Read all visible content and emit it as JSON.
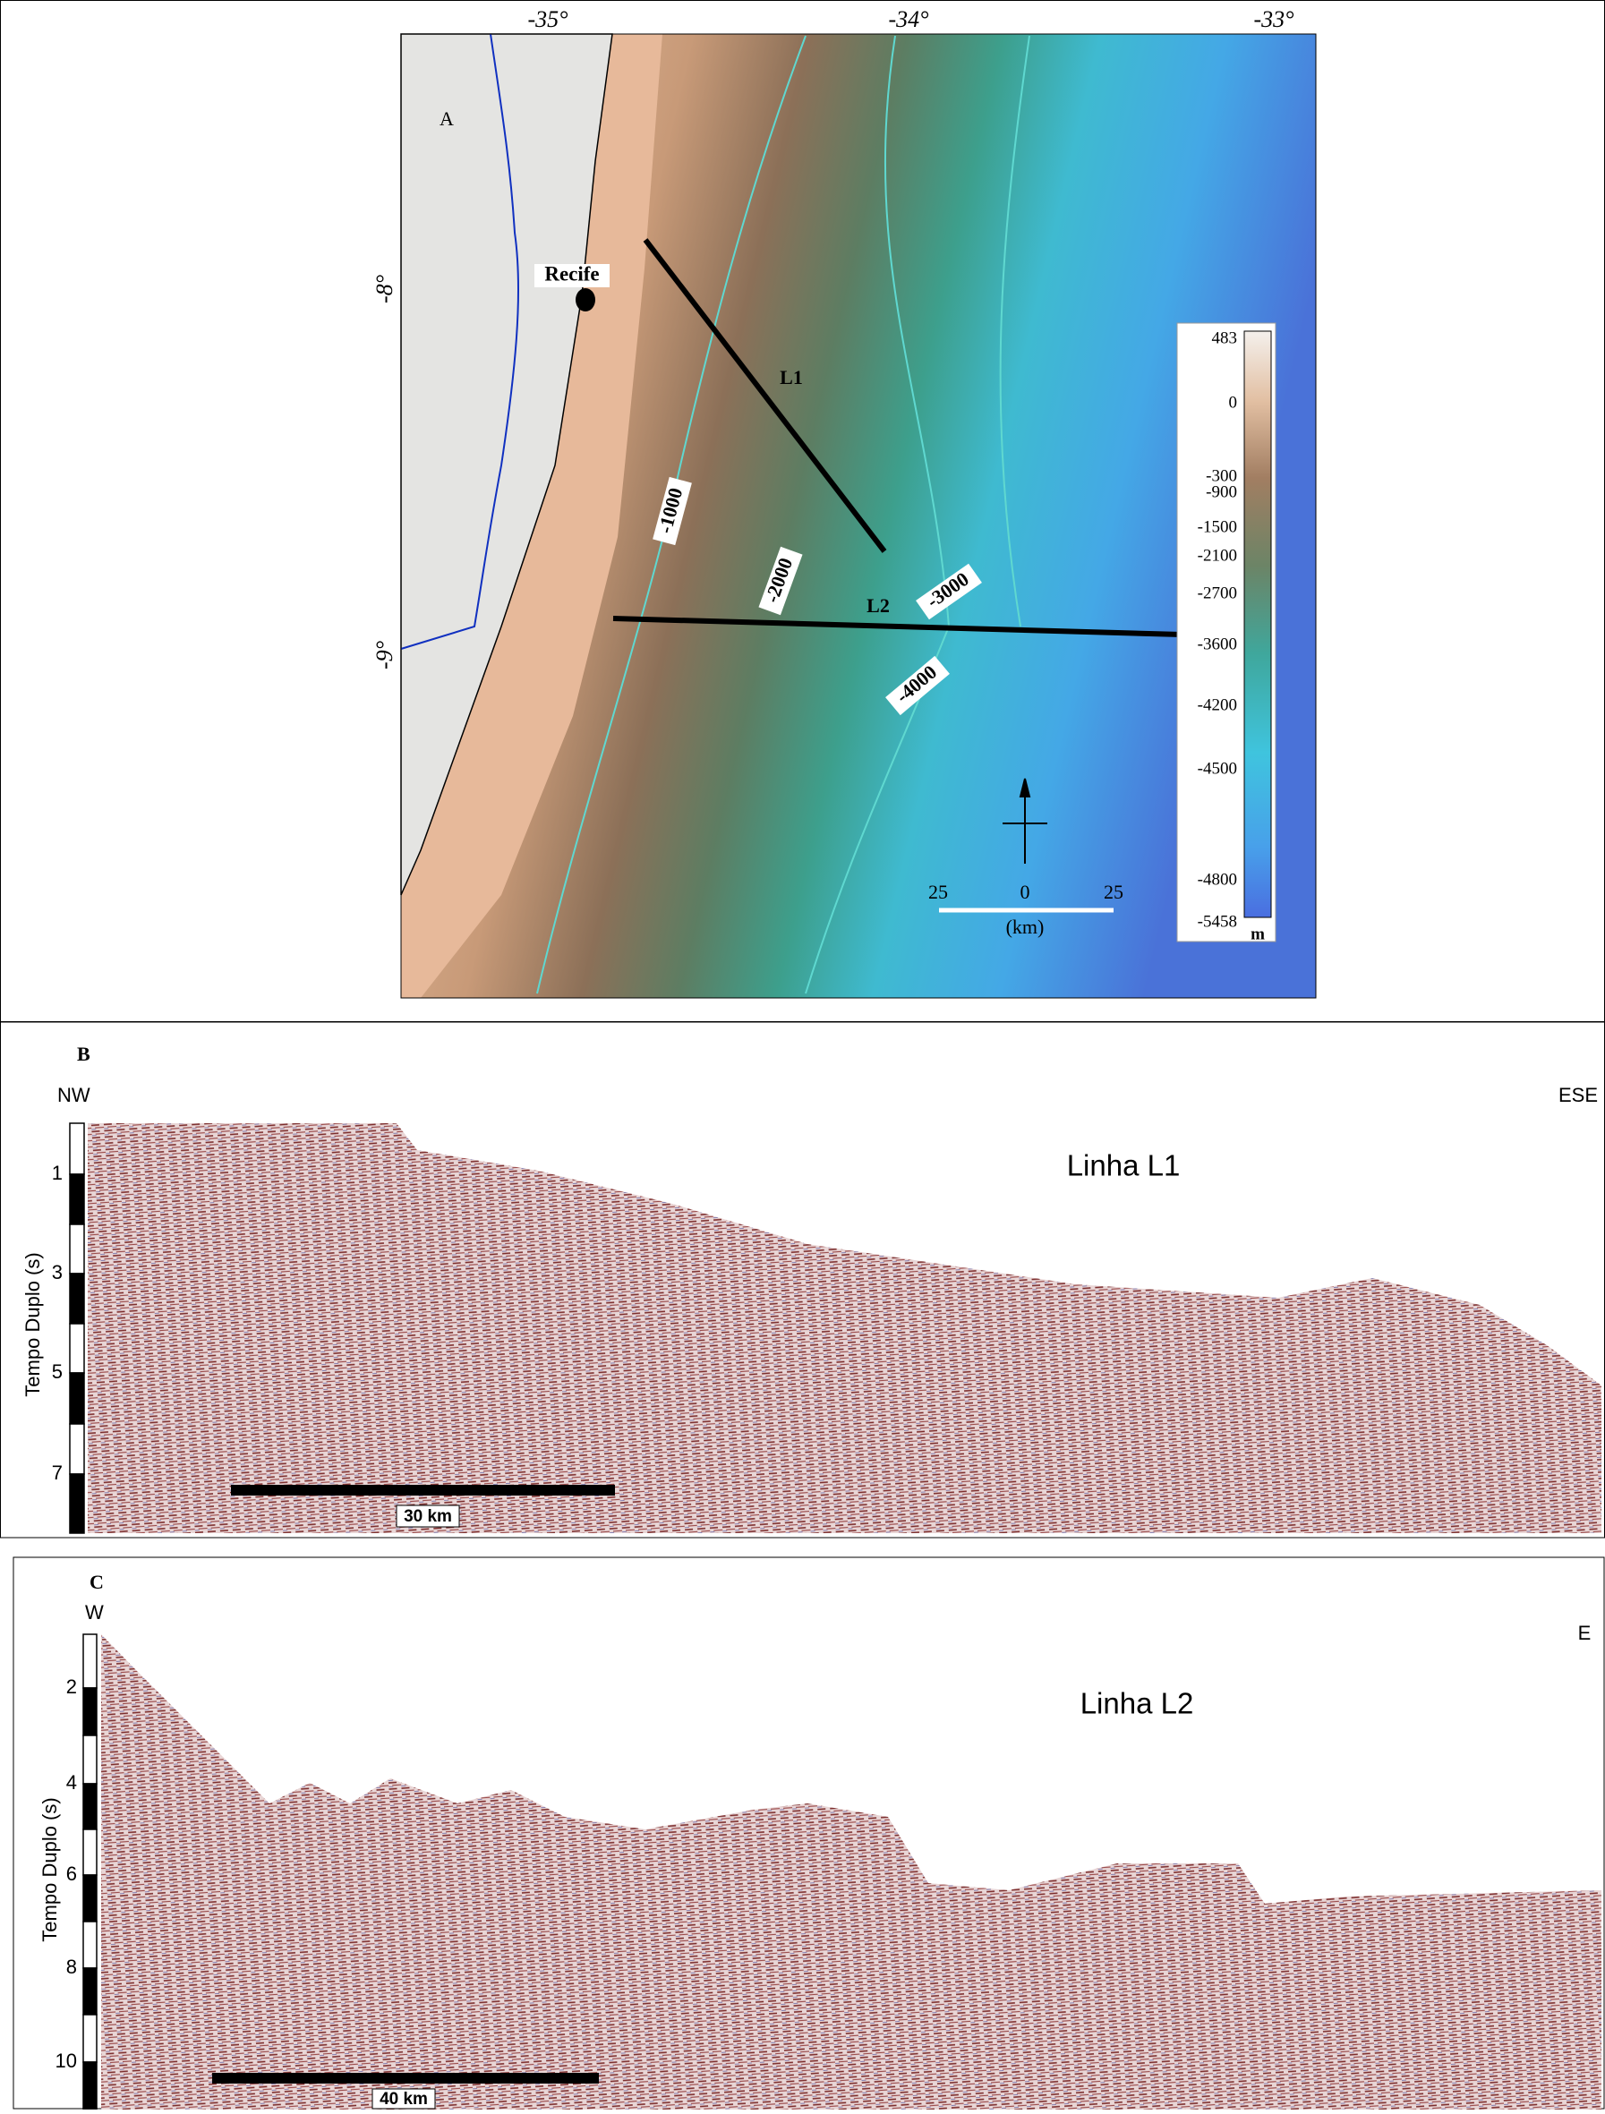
{
  "panel_a": {
    "label": "A",
    "longitudes": [
      "-35°",
      "-34°",
      "-33°"
    ],
    "latitudes": [
      "-8°",
      "-9°"
    ],
    "city": "Recife",
    "lines": [
      "L1",
      "L2"
    ],
    "contours": [
      "-1000",
      "-2000",
      "-3000",
      "-4000"
    ],
    "colorbar": {
      "labels": [
        "483",
        "0",
        "-300",
        "-900",
        "-1500",
        "-2100",
        "-2700",
        "-3600",
        "-4200",
        "-4500",
        "-4800",
        "-5458"
      ],
      "unit": "m"
    },
    "scale": {
      "labels": [
        "25",
        "0",
        "25"
      ],
      "unit": "(km)"
    }
  },
  "panel_b": {
    "label": "B",
    "left": "NW",
    "right": "ESE",
    "title": "Linha L1",
    "axis_label": "Tempo Duplo (s)",
    "ticks": [
      "1",
      "3",
      "5",
      "7"
    ],
    "scale": "30 km"
  },
  "panel_c": {
    "label": "C",
    "left": "W",
    "right": "E",
    "title": "Linha L2",
    "axis_label": "Tempo Duplo (s)",
    "ticks": [
      "2",
      "4",
      "6",
      "8",
      "10"
    ],
    "scale": "40 km"
  }
}
